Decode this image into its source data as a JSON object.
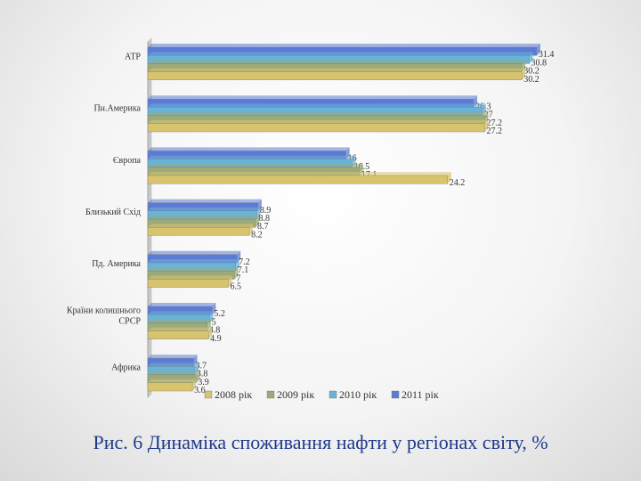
{
  "caption": "Рис. 6 Динаміка споживання нафти у регіонах світу, %",
  "chart_data": {
    "type": "bar",
    "orientation": "horizontal",
    "categories": [
      "АТР",
      "Пн.Америка",
      "Європа",
      "Близький Схід",
      "Пд. Америка",
      "Країни колишнього СРСР",
      "Африка"
    ],
    "category_lines": [
      [
        "АТР"
      ],
      [
        "Пн.Америка"
      ],
      [
        "Європа"
      ],
      [
        "Близький Схід"
      ],
      [
        "Пд. Америка"
      ],
      [
        "Країни колишнього",
        "СРСР"
      ],
      [
        "Африка"
      ]
    ],
    "series": [
      {
        "name": "2008 рік",
        "color": "#d8c46e",
        "values": [
          30.2,
          27.2,
          24.2,
          8.2,
          6.5,
          4.9,
          3.6
        ]
      },
      {
        "name": "2009 рік",
        "color": "#9caa79",
        "values": [
          30.2,
          27.2,
          17.1,
          8.7,
          7,
          4.8,
          3.9
        ]
      },
      {
        "name": "2010 рік",
        "color": "#68b3d8",
        "values": [
          30.8,
          27,
          16.5,
          8.8,
          7.1,
          5,
          3.8
        ]
      },
      {
        "name": "2011 рік",
        "color": "#5b7bd5",
        "values": [
          31.4,
          26.3,
          16,
          8.9,
          7.2,
          5.2,
          3.7
        ]
      }
    ],
    "value_labels": [
      [
        "30.2",
        "27.2",
        "24.2",
        "8.2",
        "6.5",
        "4.9",
        "3.6"
      ],
      [
        "30.2",
        "27.2",
        "17.1",
        "8.7",
        "7",
        "4.8",
        "3.9"
      ],
      [
        "30.8",
        "27",
        "16.5",
        "8.8",
        "7.1",
        "5",
        "3.8"
      ],
      [
        "31.4",
        "26.3",
        "16",
        "8.9",
        "7.2",
        "5.2",
        "3.7"
      ]
    ],
    "xlim": [
      0,
      35
    ],
    "grid": false,
    "legend_position": "bottom"
  }
}
